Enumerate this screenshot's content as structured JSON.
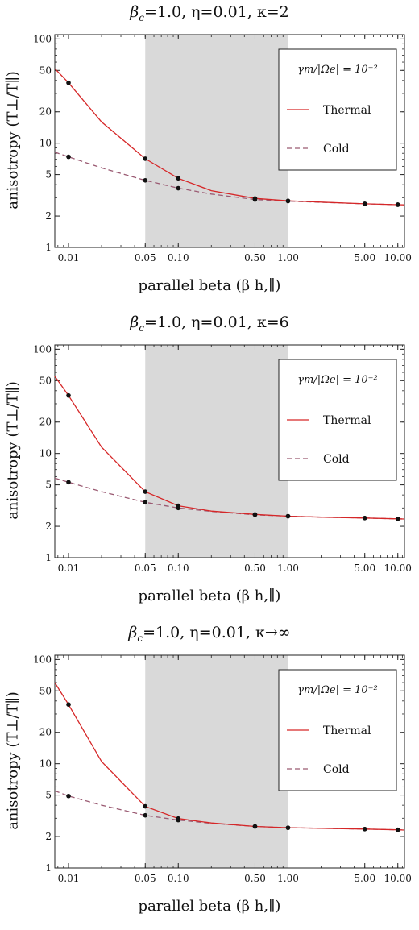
{
  "chart_data": [
    {
      "type": "line",
      "title": "β c=1.0, η=0.01, κ=2",
      "title_parts": {
        "beta": "β",
        "sub": "c",
        "rest": "=1.0, η=0.01, κ=2"
      },
      "xlabel": "parallel beta (β h,∥)",
      "ylabel": "anisotropy (T⊥/T∥)",
      "xscale": "log",
      "yscale": "log",
      "xlim": [
        0.0075,
        11.5
      ],
      "ylim": [
        1,
        110
      ],
      "xticks": [
        "0.01",
        "0.05",
        "0.10",
        "0.50",
        "1.00",
        "5.00",
        "10.00"
      ],
      "yticks": [
        "1",
        "2",
        "5",
        "10",
        "20",
        "50",
        "100"
      ],
      "shaded_region": [
        0.05,
        1.0
      ],
      "legend_title": "γm/|Ωe| = 10⁻²",
      "legend_placement": "top-right",
      "series": [
        {
          "name": "Thermal",
          "style": "solid",
          "color": "#d62728",
          "x": [
            0.0075,
            0.01,
            0.02,
            0.05,
            0.1,
            0.2,
            0.5,
            1.0,
            2.0,
            5.0,
            10.0,
            11.5
          ],
          "y": [
            52,
            38,
            16,
            7.1,
            4.6,
            3.5,
            2.95,
            2.8,
            2.72,
            2.62,
            2.57,
            2.56
          ],
          "points_x": [
            0.01,
            0.05,
            0.1,
            0.5,
            1.0,
            5.0,
            10.0
          ],
          "points_y": [
            38,
            7.1,
            4.6,
            2.95,
            2.8,
            2.62,
            2.57
          ]
        },
        {
          "name": "Cold",
          "style": "dashed",
          "color": "#9a5a72",
          "x": [
            0.0075,
            0.01,
            0.02,
            0.05,
            0.1,
            0.2,
            0.5,
            1.0,
            2.0,
            5.0,
            10.0,
            11.5
          ],
          "y": [
            8.2,
            7.4,
            5.8,
            4.4,
            3.7,
            3.25,
            2.88,
            2.78,
            2.71,
            2.62,
            2.57,
            2.56
          ],
          "points_x": [
            0.01,
            0.05,
            0.1,
            0.5,
            1.0,
            5.0,
            10.0
          ],
          "points_y": [
            7.4,
            4.4,
            3.7,
            2.88,
            2.78,
            2.62,
            2.57
          ]
        }
      ]
    },
    {
      "type": "line",
      "title": "β c=1.0, η=0.01, κ=6",
      "title_parts": {
        "beta": "β",
        "sub": "c",
        "rest": "=1.0, η=0.01, κ=6"
      },
      "xlabel": "parallel beta (β h,∥)",
      "ylabel": "anisotropy (T⊥/T∥)",
      "xscale": "log",
      "yscale": "log",
      "xlim": [
        0.0075,
        11.5
      ],
      "ylim": [
        1,
        110
      ],
      "xticks": [
        "0.01",
        "0.05",
        "0.10",
        "0.50",
        "1.00",
        "5.00",
        "10.00"
      ],
      "yticks": [
        "1",
        "2",
        "5",
        "10",
        "20",
        "50",
        "100"
      ],
      "shaded_region": [
        0.05,
        1.0
      ],
      "legend_title": "γm/|Ωe| = 10⁻²",
      "legend_placement": "top-right",
      "series": [
        {
          "name": "Thermal",
          "style": "solid",
          "color": "#d62728",
          "x": [
            0.0075,
            0.01,
            0.02,
            0.05,
            0.1,
            0.2,
            0.5,
            1.0,
            2.0,
            5.0,
            10.0,
            11.5
          ],
          "y": [
            55,
            36,
            11.5,
            4.3,
            3.15,
            2.8,
            2.6,
            2.5,
            2.45,
            2.4,
            2.36,
            2.35
          ],
          "points_x": [
            0.01,
            0.05,
            0.1,
            0.5,
            1.0,
            5.0,
            10.0
          ],
          "points_y": [
            36,
            4.3,
            3.15,
            2.6,
            2.5,
            2.4,
            2.36
          ]
        },
        {
          "name": "Cold",
          "style": "dashed",
          "color": "#9a5a72",
          "x": [
            0.0075,
            0.01,
            0.02,
            0.05,
            0.1,
            0.2,
            0.5,
            1.0,
            2.0,
            5.0,
            10.0,
            11.5
          ],
          "y": [
            5.8,
            5.3,
            4.3,
            3.4,
            3.0,
            2.78,
            2.58,
            2.5,
            2.45,
            2.4,
            2.36,
            2.35
          ],
          "points_x": [
            0.01,
            0.05,
            0.1,
            0.5,
            1.0,
            5.0,
            10.0
          ],
          "points_y": [
            5.3,
            3.4,
            3.0,
            2.58,
            2.5,
            2.4,
            2.36
          ]
        }
      ]
    },
    {
      "type": "line",
      "title": "β c=1.0, η=0.01, κ→∞",
      "title_parts": {
        "beta": "β",
        "sub": "c",
        "rest": "=1.0, η=0.01, κ→∞"
      },
      "xlabel": "parallel beta (β h,∥)",
      "ylabel": "anisotropy (T⊥/T∥)",
      "xscale": "log",
      "yscale": "log",
      "xlim": [
        0.0075,
        11.5
      ],
      "ylim": [
        1,
        110
      ],
      "xticks": [
        "0.01",
        "0.05",
        "0.10",
        "0.50",
        "1.00",
        "5.00",
        "10.00"
      ],
      "yticks": [
        "1",
        "2",
        "5",
        "10",
        "20",
        "50",
        "100"
      ],
      "shaded_region": [
        0.05,
        1.0
      ],
      "legend_title": "γm/|Ωe| = 10⁻²",
      "legend_placement": "top-right",
      "series": [
        {
          "name": "Thermal",
          "style": "solid",
          "color": "#d62728",
          "x": [
            0.0075,
            0.01,
            0.02,
            0.05,
            0.1,
            0.2,
            0.5,
            1.0,
            2.0,
            5.0,
            10.0,
            11.5
          ],
          "y": [
            60,
            37,
            10.5,
            3.9,
            2.98,
            2.7,
            2.5,
            2.43,
            2.4,
            2.36,
            2.32,
            2.31
          ],
          "points_x": [
            0.01,
            0.05,
            0.1,
            0.5,
            1.0,
            5.0,
            10.0
          ],
          "points_y": [
            37,
            3.9,
            2.98,
            2.5,
            2.43,
            2.36,
            2.32
          ]
        },
        {
          "name": "Cold",
          "style": "dashed",
          "color": "#9a5a72",
          "x": [
            0.0075,
            0.01,
            0.02,
            0.05,
            0.1,
            0.2,
            0.5,
            1.0,
            2.0,
            5.0,
            10.0,
            11.5
          ],
          "y": [
            5.5,
            4.9,
            4.0,
            3.2,
            2.88,
            2.68,
            2.5,
            2.43,
            2.4,
            2.36,
            2.32,
            2.31
          ],
          "points_x": [
            0.01,
            0.05,
            0.1,
            0.5,
            1.0,
            5.0,
            10.0
          ],
          "points_y": [
            4.9,
            3.2,
            2.88,
            2.5,
            2.43,
            2.36,
            2.32
          ]
        }
      ]
    }
  ]
}
